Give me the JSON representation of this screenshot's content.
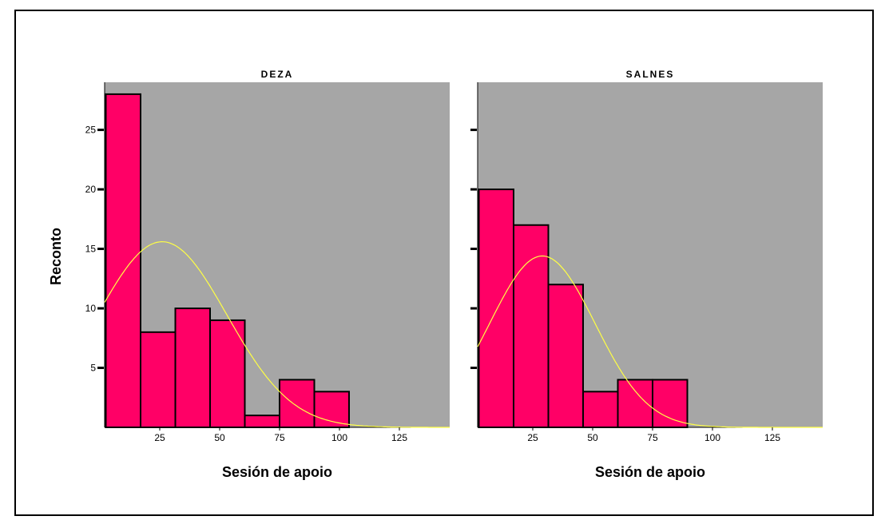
{
  "chart_data": {
    "type": "bar",
    "ylabel": "Reconto",
    "xlabel": "Sesión de apoio",
    "yticks": [
      5,
      10,
      15,
      20,
      25
    ],
    "xticks": [
      25,
      50,
      75,
      100,
      125
    ],
    "ylim": [
      0,
      29
    ],
    "xlim": [
      2,
      146
    ],
    "grid": false,
    "bar_width": 14.5,
    "colors": {
      "plot_bg": "#a6a6a6",
      "bar_fill": "#ff0066",
      "bar_stroke": "#000000",
      "curve": "#ffff44"
    },
    "panels": [
      {
        "title": "DEZA",
        "bins": [
          {
            "x0": 2.5,
            "x1": 17.0,
            "count": 28
          },
          {
            "x0": 17.0,
            "x1": 31.5,
            "count": 8
          },
          {
            "x0": 31.5,
            "x1": 46.0,
            "count": 10
          },
          {
            "x0": 46.0,
            "x1": 60.5,
            "count": 9
          },
          {
            "x0": 60.5,
            "x1": 75.0,
            "count": 1
          },
          {
            "x0": 75.0,
            "x1": 89.5,
            "count": 4
          },
          {
            "x0": 89.5,
            "x1": 104.0,
            "count": 3
          }
        ],
        "normal_curve": {
          "mean": 26,
          "sd": 27,
          "peak": 15.6
        }
      },
      {
        "title": "SALNES",
        "bins": [
          {
            "x0": 2.5,
            "x1": 17.0,
            "count": 20
          },
          {
            "x0": 17.0,
            "x1": 31.5,
            "count": 17
          },
          {
            "x0": 31.5,
            "x1": 46.0,
            "count": 12
          },
          {
            "x0": 46.0,
            "x1": 60.5,
            "count": 3
          },
          {
            "x0": 60.5,
            "x1": 75.0,
            "count": 4
          },
          {
            "x0": 75.0,
            "x1": 89.5,
            "count": 4
          }
        ],
        "normal_curve": {
          "mean": 29,
          "sd": 22,
          "peak": 14.4
        }
      }
    ]
  }
}
